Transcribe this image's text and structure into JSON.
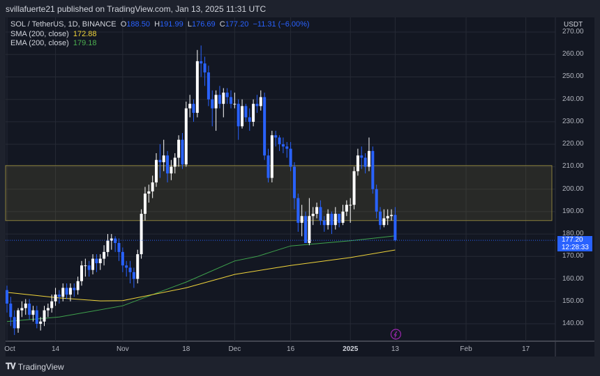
{
  "header": {
    "published": "svillafuerte21 published on TradingView.com, Jan 13, 2025 11:31 UTC"
  },
  "legend": {
    "symbol": "SOL / TetherUS, 1D, BINANCE",
    "o_label": "O",
    "o": "188.50",
    "h_label": "H",
    "h": "191.99",
    "l_label": "L",
    "l": "176.69",
    "c_label": "C",
    "c": "177.20",
    "change": "−11.31 (−6.00%)",
    "sma_label": "SMA (200, close)",
    "sma_value": "172.88",
    "ema_label": "EMA (200, close)",
    "ema_value": "179.18"
  },
  "price_axis": {
    "currency": "USDT",
    "ticks": [
      "270.00",
      "260.00",
      "250.00",
      "240.00",
      "230.00",
      "220.00",
      "210.00",
      "200.00",
      "190.00",
      "180.00",
      "170.00",
      "160.00",
      "150.00",
      "140.00"
    ],
    "current_price": "177.20",
    "countdown": "12:28:33"
  },
  "time_axis": {
    "labels": [
      {
        "text": "Oct",
        "day": 0
      },
      {
        "text": "14",
        "day": 13
      },
      {
        "text": "Nov",
        "day": 31
      },
      {
        "text": "18",
        "day": 48
      },
      {
        "text": "Dec",
        "day": 61
      },
      {
        "text": "16",
        "day": 76
      },
      {
        "text": "2025",
        "day": 92,
        "bold": true
      },
      {
        "text": "13",
        "day": 104
      },
      {
        "text": "Feb",
        "day": 123
      },
      {
        "text": "17",
        "day": 139
      }
    ]
  },
  "footer": {
    "brand": "TradingView",
    "logo": "TV"
  },
  "colors": {
    "up": "#ffffff",
    "down": "#2962ff",
    "sma": "#f0d43a",
    "ema": "#3fa34d",
    "zone": "#8a7f3c",
    "price_line": "#2962ff",
    "event": "#9c27b0"
  },
  "icons": {
    "event_marker": "lightning-icon"
  },
  "chart_data": {
    "type": "candlestick",
    "symbol": "SOL / TetherUS",
    "interval": "1D",
    "start_date": "2024-10-01",
    "end_date": "2025-01-13",
    "ylim": [
      130,
      275
    ],
    "grid": true,
    "open": [
      155,
      149,
      143,
      138,
      146,
      147,
      149,
      144,
      146,
      140,
      141,
      146,
      147,
      150,
      153,
      152,
      156,
      153,
      156,
      155,
      159,
      166,
      166,
      164,
      169,
      167,
      169,
      172,
      177,
      178,
      176,
      172,
      166,
      165,
      163,
      160,
      171,
      189,
      198,
      199,
      203,
      213,
      212,
      215,
      207,
      210,
      214,
      222,
      211,
      236,
      238,
      234,
      257,
      256,
      252,
      240,
      236,
      242,
      238,
      243,
      241,
      238,
      238,
      228,
      237,
      232,
      230,
      238,
      237,
      241,
      215,
      205,
      224,
      223,
      220,
      219,
      218,
      210,
      196,
      185,
      188,
      176,
      188,
      189,
      192,
      186,
      184,
      189,
      184,
      189,
      185,
      190,
      193,
      193,
      208,
      215,
      214,
      210,
      217,
      200,
      190,
      184,
      187,
      188,
      188.5
    ],
    "high": [
      157,
      152,
      146,
      147,
      150,
      151,
      151,
      148,
      148,
      143,
      148,
      149,
      153,
      156,
      155,
      158,
      158,
      158,
      158,
      161,
      168,
      169,
      168,
      171,
      171,
      171,
      175,
      180,
      180,
      179,
      178,
      174,
      168,
      168,
      165,
      173,
      191,
      201,
      202,
      206,
      216,
      220,
      222,
      217,
      213,
      216,
      224,
      225,
      239,
      242,
      240,
      262,
      264,
      259,
      255,
      244,
      244,
      246,
      245,
      245,
      244,
      243,
      240,
      240,
      238,
      236,
      240,
      242,
      244,
      243,
      218,
      226,
      226,
      224,
      223,
      221,
      221,
      212,
      198,
      193,
      190,
      196,
      192,
      194,
      195,
      188,
      191,
      190,
      192,
      188,
      193,
      195,
      196,
      210,
      218,
      219,
      216,
      223,
      219,
      202,
      192,
      191,
      191,
      191,
      191.99
    ],
    "low": [
      145,
      139,
      135,
      136,
      143,
      144,
      142,
      141,
      138,
      137,
      139,
      143,
      145,
      148,
      149,
      150,
      151,
      150,
      152,
      153,
      157,
      161,
      161,
      162,
      163,
      164,
      166,
      170,
      173,
      172,
      168,
      163,
      161,
      158,
      156,
      158,
      169,
      186,
      194,
      196,
      201,
      205,
      208,
      203,
      204,
      207,
      210,
      209,
      210,
      232,
      230,
      232,
      250,
      246,
      237,
      228,
      226,
      236,
      232,
      238,
      236,
      236,
      222,
      227,
      230,
      226,
      228,
      234,
      235,
      213,
      203,
      203,
      219,
      217,
      216,
      214,
      208,
      191,
      181,
      179,
      176,
      175,
      184,
      187,
      184,
      181,
      182,
      180,
      182,
      183,
      184,
      188,
      185,
      191,
      206,
      209,
      207,
      208,
      198,
      187,
      182,
      183,
      184,
      186,
      176.69
    ],
    "close": [
      149,
      143,
      138,
      146,
      147,
      149,
      144,
      146,
      140,
      141,
      146,
      147,
      150,
      153,
      152,
      156,
      153,
      156,
      155,
      159,
      166,
      166,
      164,
      169,
      167,
      169,
      172,
      177,
      178,
      176,
      172,
      166,
      165,
      163,
      160,
      171,
      189,
      198,
      199,
      203,
      213,
      212,
      215,
      207,
      210,
      214,
      222,
      211,
      236,
      238,
      234,
      257,
      256,
      252,
      240,
      236,
      242,
      238,
      243,
      241,
      238,
      238,
      228,
      237,
      232,
      230,
      238,
      237,
      241,
      215,
      205,
      224,
      223,
      220,
      219,
      218,
      210,
      196,
      185,
      188,
      176,
      188,
      189,
      192,
      186,
      184,
      189,
      184,
      189,
      185,
      190,
      193,
      193,
      208,
      215,
      214,
      210,
      217,
      200,
      190,
      184,
      187,
      188,
      188.5,
      177.2
    ],
    "sma_200": {
      "name": "SMA (200, close)",
      "points": [
        [
          0,
          154
        ],
        [
          14,
          151.5
        ],
        [
          25,
          150.2
        ],
        [
          31,
          150.3
        ],
        [
          48,
          156
        ],
        [
          61,
          162
        ],
        [
          76,
          166
        ],
        [
          92,
          169.5
        ],
        [
          104,
          172.88
        ]
      ]
    },
    "ema_200": {
      "name": "EMA (200, close)",
      "points": [
        [
          0,
          141
        ],
        [
          14,
          143
        ],
        [
          31,
          148
        ],
        [
          48,
          158.6
        ],
        [
          61,
          168
        ],
        [
          67,
          170
        ],
        [
          76,
          174.7
        ],
        [
          92,
          177
        ],
        [
          104,
          179.18
        ]
      ]
    },
    "zone": {
      "top": 210.5,
      "bottom": 186
    },
    "current_price": 177.2
  }
}
